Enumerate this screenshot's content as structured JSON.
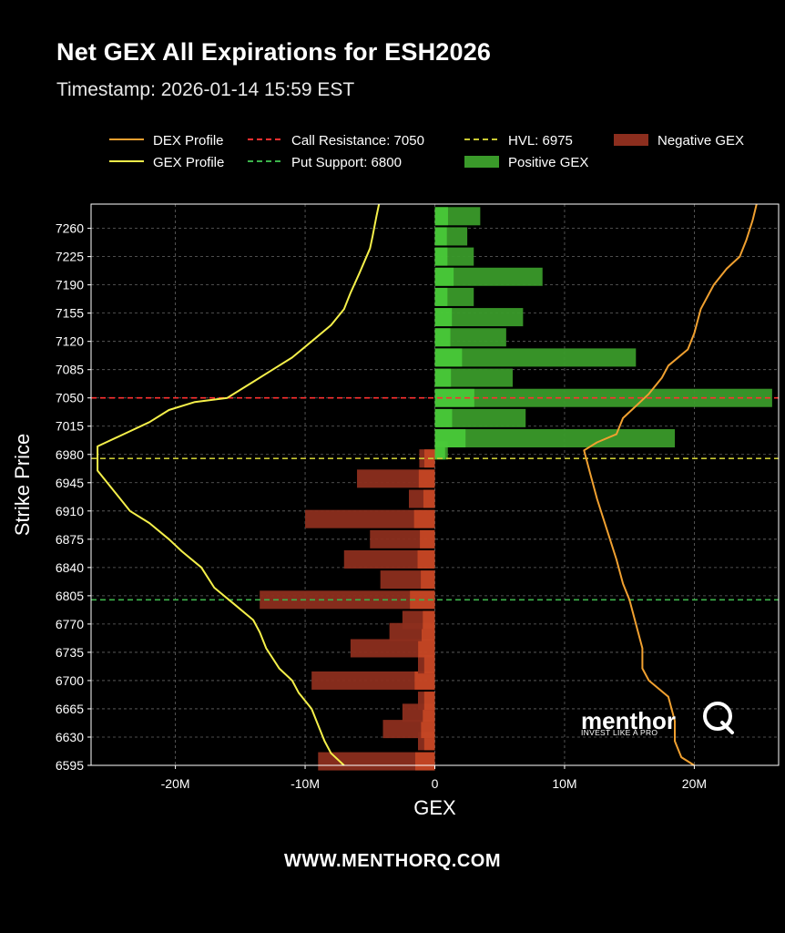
{
  "title": "Net GEX All Expirations for ESH2026",
  "subtitle": "Timestamp: 2026-01-14 15:59 EST",
  "footer": "WWW.MENTHORQ.COM",
  "logo": {
    "wordmark": "menthor",
    "tagline": "INVEST LIKE A PRO"
  },
  "chart_data": {
    "type": "bar",
    "orientation": "horizontal",
    "xlabel": "GEX",
    "ylabel": "Strike Price",
    "xlim": [
      -26.5,
      26.5
    ],
    "ylim": [
      6595,
      7290
    ],
    "x_ticks": [
      -20,
      -10,
      0,
      10,
      20
    ],
    "x_tick_labels": [
      "-20M",
      "-10M",
      "0",
      "10M",
      "20M"
    ],
    "y_ticks": [
      6595,
      6630,
      6665,
      6700,
      6735,
      6770,
      6805,
      6840,
      6875,
      6910,
      6945,
      6980,
      7015,
      7050,
      7085,
      7120,
      7155,
      7190,
      7225,
      7260
    ],
    "grid": true,
    "legend": {
      "placement": "top",
      "entries": [
        {
          "label": "DEX Profile",
          "kind": "line",
          "color": "#f0a030"
        },
        {
          "label": "GEX Profile",
          "kind": "line",
          "color": "#f5f04a"
        },
        {
          "label": "Call Resistance: 7050",
          "kind": "dashed",
          "color": "#ff3030"
        },
        {
          "label": "Put Support: 6800",
          "kind": "dashed",
          "color": "#3cb44b"
        },
        {
          "label": "HVL: 6975",
          "kind": "dashed",
          "color": "#c8c832"
        },
        {
          "label": "Positive GEX",
          "kind": "patch",
          "color": "#3a9a2a"
        },
        {
          "label": "Negative GEX",
          "kind": "patch",
          "color": "#8c2e1e"
        }
      ]
    },
    "levels": [
      {
        "name": "Call Resistance",
        "value": 7050,
        "color": "#ff3030"
      },
      {
        "name": "HVL",
        "value": 6975,
        "color": "#c8c832"
      },
      {
        "name": "Put Support",
        "value": 6800,
        "color": "#3cb44b"
      }
    ],
    "colors": {
      "positive": "#3a9a2a",
      "negative": "#8c2e1e",
      "positive_bright": "#55ee44",
      "negative_bright": "#f05a2a",
      "dex": "#f0a030",
      "gex_profile": "#f5f04a"
    },
    "bars": [
      {
        "strike": 6600,
        "gex": -9.0
      },
      {
        "strike": 6625,
        "gex": -1.3
      },
      {
        "strike": 6640,
        "gex": -4.0
      },
      {
        "strike": 6660,
        "gex": -2.5
      },
      {
        "strike": 6675,
        "gex": -1.3
      },
      {
        "strike": 6700,
        "gex": -9.5
      },
      {
        "strike": 6720,
        "gex": -1.3
      },
      {
        "strike": 6740,
        "gex": -6.5
      },
      {
        "strike": 6760,
        "gex": -3.5
      },
      {
        "strike": 6775,
        "gex": -2.5
      },
      {
        "strike": 6800,
        "gex": -13.5
      },
      {
        "strike": 6825,
        "gex": -4.2
      },
      {
        "strike": 6850,
        "gex": -7.0
      },
      {
        "strike": 6875,
        "gex": -5.0
      },
      {
        "strike": 6900,
        "gex": -10.0
      },
      {
        "strike": 6925,
        "gex": -2.0
      },
      {
        "strike": 6950,
        "gex": -6.0
      },
      {
        "strike": 6975,
        "gex": -1.2
      },
      {
        "strike": 6985,
        "gex": 1.0
      },
      {
        "strike": 7000,
        "gex": 18.5
      },
      {
        "strike": 7025,
        "gex": 7.0
      },
      {
        "strike": 7050,
        "gex": 26.0
      },
      {
        "strike": 7075,
        "gex": 6.0
      },
      {
        "strike": 7100,
        "gex": 15.5
      },
      {
        "strike": 7125,
        "gex": 5.5
      },
      {
        "strike": 7150,
        "gex": 6.8
      },
      {
        "strike": 7175,
        "gex": 3.0
      },
      {
        "strike": 7200,
        "gex": 8.3
      },
      {
        "strike": 7225,
        "gex": 3.0
      },
      {
        "strike": 7250,
        "gex": 2.5
      },
      {
        "strike": 7275,
        "gex": 3.5
      }
    ],
    "series": [
      {
        "name": "GEX Profile",
        "points": [
          [
            -7.0,
            6595
          ],
          [
            -8.0,
            6610
          ],
          [
            -8.5,
            6625
          ],
          [
            -9.0,
            6645
          ],
          [
            -9.5,
            6665
          ],
          [
            -10.5,
            6685
          ],
          [
            -11.0,
            6700
          ],
          [
            -12.0,
            6715
          ],
          [
            -13.0,
            6740
          ],
          [
            -13.5,
            6760
          ],
          [
            -14.0,
            6775
          ],
          [
            -15.5,
            6795
          ],
          [
            -17.0,
            6815
          ],
          [
            -18.0,
            6840
          ],
          [
            -19.5,
            6860
          ],
          [
            -20.5,
            6875
          ],
          [
            -22.0,
            6895
          ],
          [
            -23.5,
            6910
          ],
          [
            -25.0,
            6940
          ],
          [
            -26.0,
            6960
          ],
          [
            -26.0,
            6990
          ],
          [
            -24.0,
            7005
          ],
          [
            -22.0,
            7020
          ],
          [
            -20.5,
            7035
          ],
          [
            -18.5,
            7045
          ],
          [
            -16.0,
            7050
          ],
          [
            -14.0,
            7070
          ],
          [
            -12.5,
            7085
          ],
          [
            -11.0,
            7100
          ],
          [
            -9.5,
            7120
          ],
          [
            -8.0,
            7140
          ],
          [
            -7.0,
            7160
          ],
          [
            -6.5,
            7180
          ],
          [
            -5.8,
            7205
          ],
          [
            -5.0,
            7235
          ],
          [
            -4.8,
            7250
          ],
          [
            -4.5,
            7275
          ],
          [
            -4.3,
            7290
          ]
        ]
      },
      {
        "name": "DEX Profile",
        "points": [
          [
            20.0,
            6595
          ],
          [
            19.0,
            6605
          ],
          [
            18.5,
            6625
          ],
          [
            18.5,
            6650
          ],
          [
            18.0,
            6680
          ],
          [
            16.5,
            6700
          ],
          [
            16.0,
            6715
          ],
          [
            16.0,
            6740
          ],
          [
            15.5,
            6770
          ],
          [
            15.0,
            6800
          ],
          [
            14.5,
            6820
          ],
          [
            14.0,
            6850
          ],
          [
            13.5,
            6875
          ],
          [
            13.0,
            6900
          ],
          [
            12.5,
            6925
          ],
          [
            12.0,
            6955
          ],
          [
            11.5,
            6985
          ],
          [
            12.5,
            6995
          ],
          [
            14.0,
            7005
          ],
          [
            14.5,
            7025
          ],
          [
            15.5,
            7040
          ],
          [
            16.5,
            7055
          ],
          [
            17.5,
            7075
          ],
          [
            18.0,
            7090
          ],
          [
            19.5,
            7110
          ],
          [
            20.0,
            7130
          ],
          [
            20.5,
            7160
          ],
          [
            21.5,
            7190
          ],
          [
            22.5,
            7210
          ],
          [
            23.5,
            7225
          ],
          [
            24.0,
            7245
          ],
          [
            24.5,
            7270
          ],
          [
            24.8,
            7290
          ]
        ]
      }
    ]
  }
}
